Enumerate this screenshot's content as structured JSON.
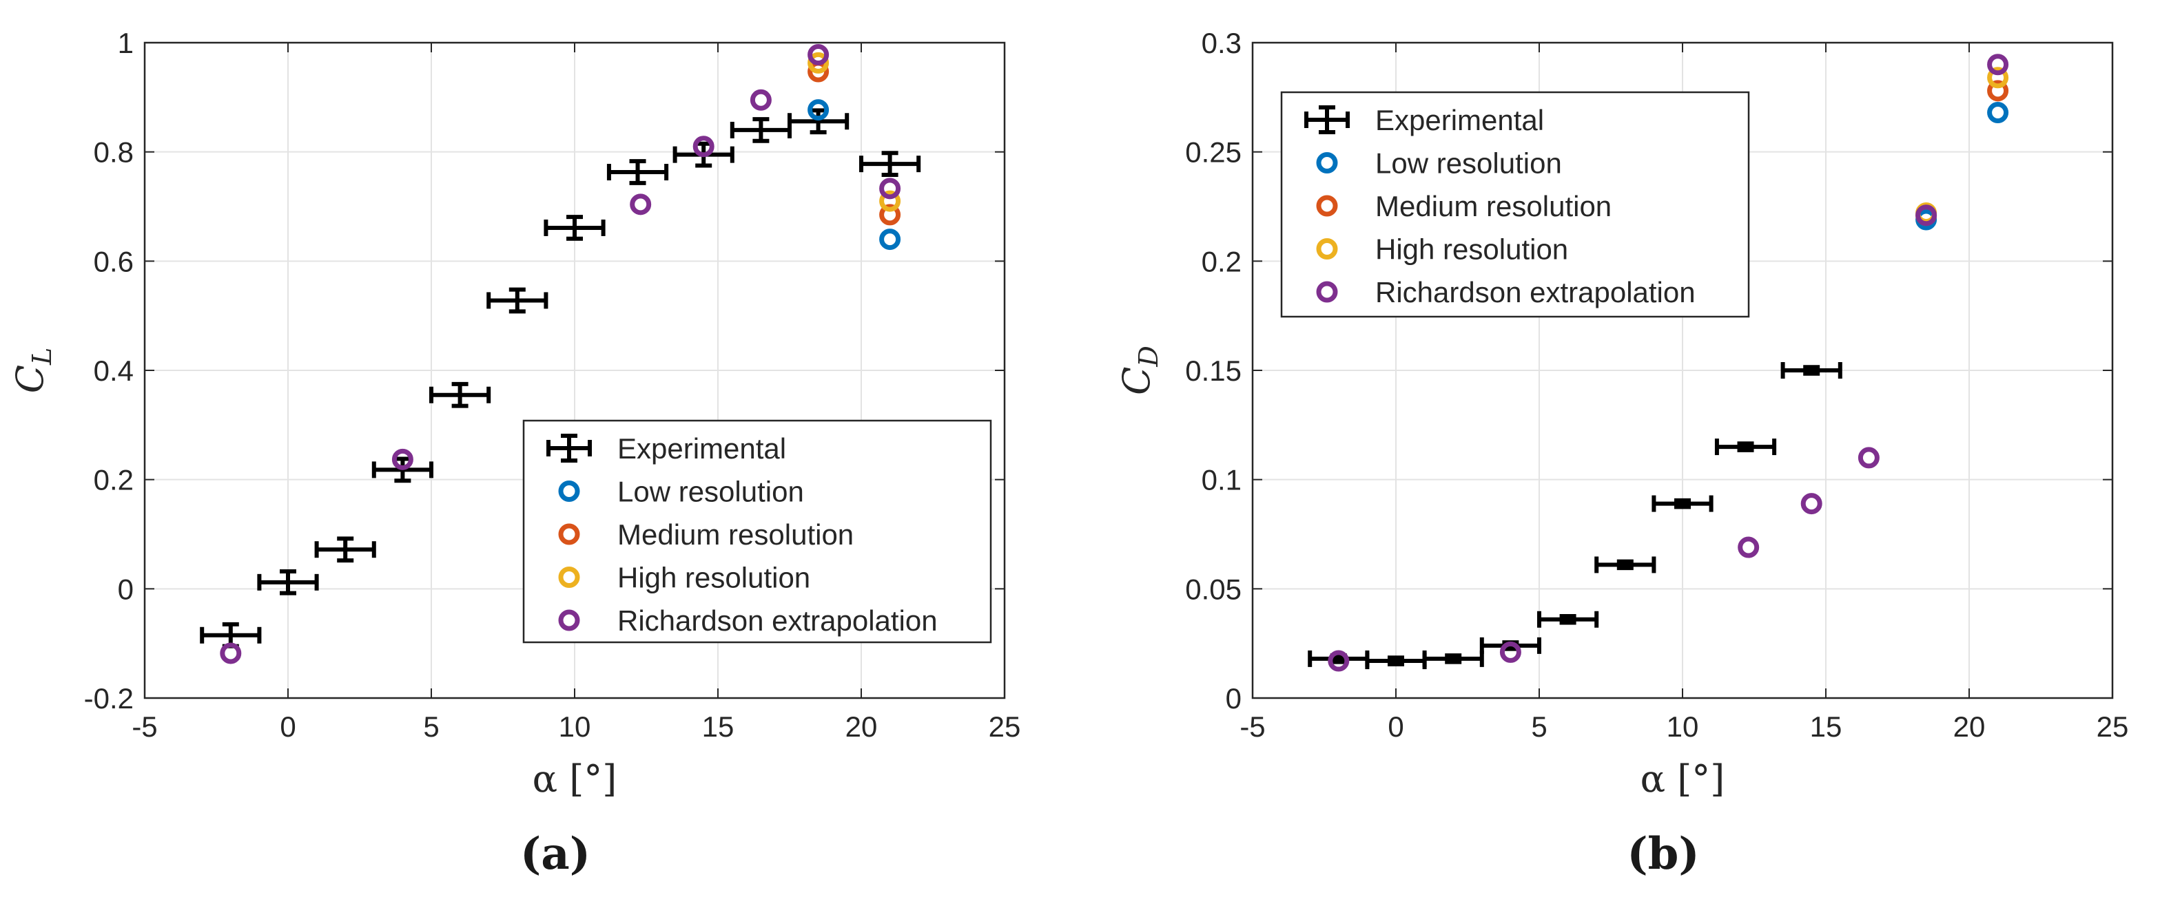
{
  "colors": {
    "experimental": "#000000",
    "low": "#0072BD",
    "medium": "#D95319",
    "high": "#EDB120",
    "richardson": "#7E2F8E",
    "grid": "#e3e3e3",
    "axis": "#262626"
  },
  "chart_data": [
    {
      "type": "scatter",
      "panel_label": "(a)",
      "xlabel": "α [°]",
      "ylabel": {
        "symbol": "C",
        "subscript": "L"
      },
      "xlim": [
        -5,
        25
      ],
      "ylim": [
        -0.2,
        1
      ],
      "x_ticks": [
        -5,
        0,
        5,
        10,
        15,
        20,
        25
      ],
      "y_ticks": [
        -0.2,
        0,
        0.2,
        0.4,
        0.6,
        0.8,
        1
      ],
      "x_tick_labels": [
        "-5",
        "0",
        "5",
        "10",
        "15",
        "20",
        "25"
      ],
      "y_tick_labels": [
        "-0.2",
        "0",
        "0.2",
        "0.4",
        "0.6",
        "0.8",
        "1"
      ],
      "grid": true,
      "legend": {
        "position": "lower-right",
        "entries": [
          "Experimental",
          "Low resolution",
          "Medium resolution",
          "High resolution",
          "Richardson extrapolation"
        ]
      },
      "series": [
        {
          "name": "Experimental",
          "kind": "errorbar",
          "x": [
            -2,
            0,
            2,
            4,
            6,
            8,
            10,
            12.2,
            14.5,
            16.5,
            18.5,
            21
          ],
          "y": [
            -0.085,
            0.012,
            0.072,
            0.218,
            0.355,
            0.528,
            0.661,
            0.763,
            0.795,
            0.84,
            0.856,
            0.778
          ],
          "x_err": [
            1,
            1,
            1,
            1,
            1,
            1,
            1,
            1,
            1,
            1,
            1,
            1
          ],
          "y_err": [
            0.02,
            0.02,
            0.02,
            0.02,
            0.02,
            0.02,
            0.02,
            0.02,
            0.02,
            0.02,
            0.02,
            0.02
          ]
        },
        {
          "name": "Low resolution",
          "kind": "marker",
          "x": [
            18.5,
            21
          ],
          "y": [
            0.877,
            0.64
          ]
        },
        {
          "name": "Medium resolution",
          "kind": "marker",
          "x": [
            18.5,
            21
          ],
          "y": [
            0.947,
            0.685
          ]
        },
        {
          "name": "High resolution",
          "kind": "marker",
          "x": [
            18.5,
            21
          ],
          "y": [
            0.963,
            0.71
          ]
        },
        {
          "name": "Richardson extrapolation",
          "kind": "marker",
          "x": [
            -2,
            4,
            12.3,
            14.5,
            16.5,
            18.5,
            21
          ],
          "y": [
            -0.118,
            0.237,
            0.704,
            0.81,
            0.895,
            0.978,
            0.733
          ]
        }
      ]
    },
    {
      "type": "scatter",
      "panel_label": "(b)",
      "xlabel": "α [°]",
      "ylabel": {
        "symbol": "C",
        "subscript": "D"
      },
      "xlim": [
        -5,
        25
      ],
      "ylim": [
        0,
        0.3
      ],
      "x_ticks": [
        -5,
        0,
        5,
        10,
        15,
        20,
        25
      ],
      "y_ticks": [
        0,
        0.05,
        0.1,
        0.15,
        0.2,
        0.25,
        0.3
      ],
      "x_tick_labels": [
        "-5",
        "0",
        "5",
        "10",
        "15",
        "20",
        "25"
      ],
      "y_tick_labels": [
        "0",
        "0.05",
        "0.1",
        "0.15",
        "0.2",
        "0.25",
        "0.3"
      ],
      "grid": true,
      "legend": {
        "position": "top-left",
        "entries": [
          "Experimental",
          "Low resolution",
          "Medium resolution",
          "High resolution",
          "Richardson extrapolation"
        ]
      },
      "series": [
        {
          "name": "Experimental",
          "kind": "errorbar",
          "x": [
            -2,
            0,
            2,
            4,
            6,
            8,
            10,
            12.2,
            14.5
          ],
          "y": [
            0.018,
            0.017,
            0.018,
            0.024,
            0.036,
            0.061,
            0.089,
            0.115,
            0.15
          ],
          "x_err": [
            1,
            1,
            1,
            1,
            1,
            1,
            1,
            1,
            1
          ],
          "y_err": [
            0.0015,
            0.0015,
            0.0015,
            0.0015,
            0.0015,
            0.0015,
            0.0015,
            0.0015,
            0.0015
          ]
        },
        {
          "name": "Low resolution",
          "kind": "marker",
          "x": [
            18.5,
            21
          ],
          "y": [
            0.219,
            0.268
          ]
        },
        {
          "name": "Medium resolution",
          "kind": "marker",
          "x": [
            18.5,
            21
          ],
          "y": [
            0.221,
            0.278
          ]
        },
        {
          "name": "High resolution",
          "kind": "marker",
          "x": [
            18.5,
            21
          ],
          "y": [
            0.222,
            0.284
          ]
        },
        {
          "name": "Richardson extrapolation",
          "kind": "marker",
          "x": [
            -2,
            4,
            12.3,
            14.5,
            16.5,
            18.5,
            21
          ],
          "y": [
            0.017,
            0.021,
            0.069,
            0.089,
            0.11,
            0.221,
            0.29
          ]
        }
      ]
    }
  ]
}
